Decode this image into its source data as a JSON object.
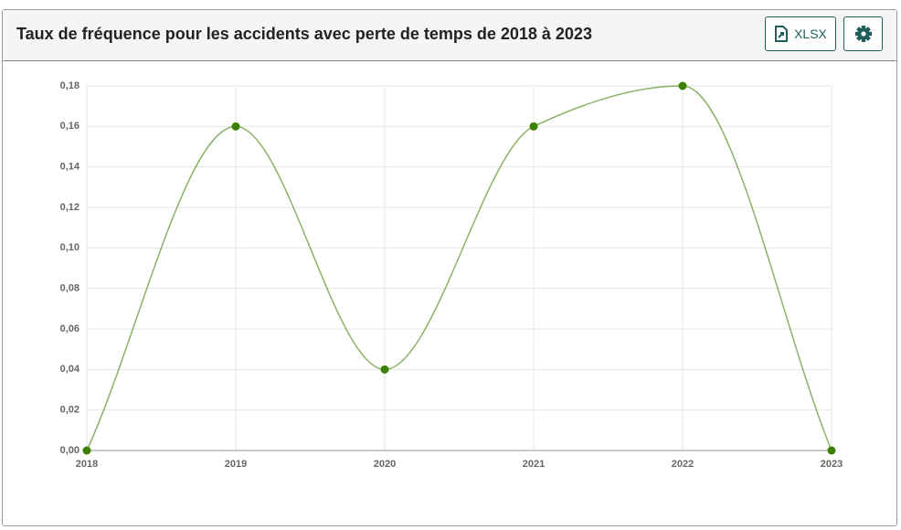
{
  "header": {
    "title": "Taux de fréquence pour les accidents avec perte de temps de 2018 à 2023",
    "export_label": "XLSX"
  },
  "chart_data": {
    "type": "line",
    "categories": [
      "2018",
      "2019",
      "2020",
      "2021",
      "2022",
      "2023"
    ],
    "series": [
      {
        "color": "#3d7f00",
        "values": [
          0,
          0.16,
          0.04,
          0.16,
          0.18,
          0
        ]
      }
    ],
    "ylim": [
      0,
      0.18
    ],
    "yticks": [
      {
        "value": 0,
        "label": "0,00"
      },
      {
        "value": 0.02,
        "label": "0,02"
      },
      {
        "value": 0.04,
        "label": "0,04"
      },
      {
        "value": 0.06,
        "label": "0,06"
      },
      {
        "value": 0.08,
        "label": "0,08"
      },
      {
        "value": 0.1,
        "label": "0,10"
      },
      {
        "value": 0.12,
        "label": "0,12"
      },
      {
        "value": 0.14,
        "label": "0,14"
      },
      {
        "value": 0.16,
        "label": "0,16"
      },
      {
        "value": 0.18,
        "label": "0,18"
      }
    ],
    "grid": true
  }
}
